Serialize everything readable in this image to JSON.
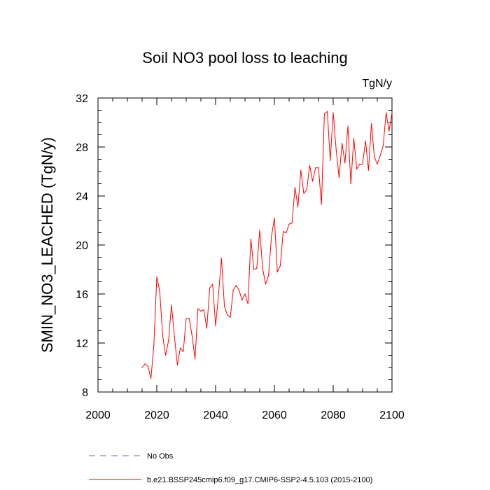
{
  "chart_data": {
    "type": "line",
    "title": "Soil NO3 pool loss to leaching",
    "units": "TgN/y",
    "xlabel": "",
    "ylabel": "SMIN_NO3_LEACHED  (TgN/y)",
    "xlim": [
      2000,
      2100
    ],
    "ylim": [
      8,
      32
    ],
    "xticks": [
      "2000",
      "2020",
      "2040",
      "2060",
      "2080",
      "2100"
    ],
    "yticks": [
      "8",
      "12",
      "16",
      "20",
      "24",
      "28",
      "32"
    ],
    "series": [
      {
        "name": "b.e21.BSSP245cmip6.f09_g17.CMIP6-SSP2-4.5.103 (2015-2100)",
        "color": "#ff0000",
        "x": [
          2015,
          2016,
          2017,
          2018,
          2019,
          2020,
          2021,
          2022,
          2023,
          2024,
          2025,
          2026,
          2027,
          2028,
          2029,
          2030,
          2031,
          2032,
          2033,
          2034,
          2035,
          2036,
          2037,
          2038,
          2039,
          2040,
          2041,
          2042,
          2043,
          2044,
          2045,
          2046,
          2047,
          2048,
          2049,
          2050,
          2051,
          2052,
          2053,
          2054,
          2055,
          2056,
          2057,
          2058,
          2059,
          2060,
          2061,
          2062,
          2063,
          2064,
          2065,
          2066,
          2067,
          2068,
          2069,
          2070,
          2071,
          2072,
          2073,
          2074,
          2075,
          2076,
          2077,
          2078,
          2079,
          2080,
          2081,
          2082,
          2083,
          2084,
          2085,
          2086,
          2087,
          2088,
          2089,
          2090,
          2091,
          2092,
          2093,
          2094,
          2095,
          2096,
          2097,
          2098,
          2099,
          2100
        ],
        "values": [
          10.0,
          10.3,
          10.1,
          9.1,
          11.8,
          17.4,
          16.2,
          12.6,
          11.0,
          12.2,
          15.1,
          12.5,
          10.2,
          11.6,
          11.3,
          14.0,
          14.0,
          12.6,
          10.7,
          14.8,
          14.6,
          14.7,
          13.2,
          16.5,
          16.8,
          13.4,
          16.0,
          18.9,
          15.0,
          14.3,
          14.1,
          16.3,
          16.7,
          16.3,
          15.5,
          16.0,
          15.2,
          20.5,
          18.0,
          18.1,
          21.2,
          18.1,
          16.8,
          17.5,
          20.7,
          22.2,
          17.8,
          18.3,
          21.1,
          21.0,
          21.7,
          21.8,
          24.7,
          23.1,
          26.1,
          24.2,
          24.5,
          26.5,
          25.2,
          26.3,
          26.3,
          23.3,
          30.7,
          30.9,
          26.9,
          30.8,
          27.8,
          25.5,
          28.3,
          26.7,
          29.7,
          25.0,
          28.7,
          26.2,
          26.6,
          26.6,
          28.5,
          26.1,
          29.9,
          27.2,
          26.6,
          27.3,
          28.1,
          30.8,
          29.3,
          30.8
        ]
      }
    ],
    "legend": [
      {
        "label": "No Obs",
        "style": "dashed",
        "color": "#5b6bd6"
      },
      {
        "label": "b.e21.BSSP245cmip6.f09_g17.CMIP6-SSP2-4.5.103 (2015-2100)",
        "style": "solid",
        "color": "#ff0000"
      }
    ]
  }
}
